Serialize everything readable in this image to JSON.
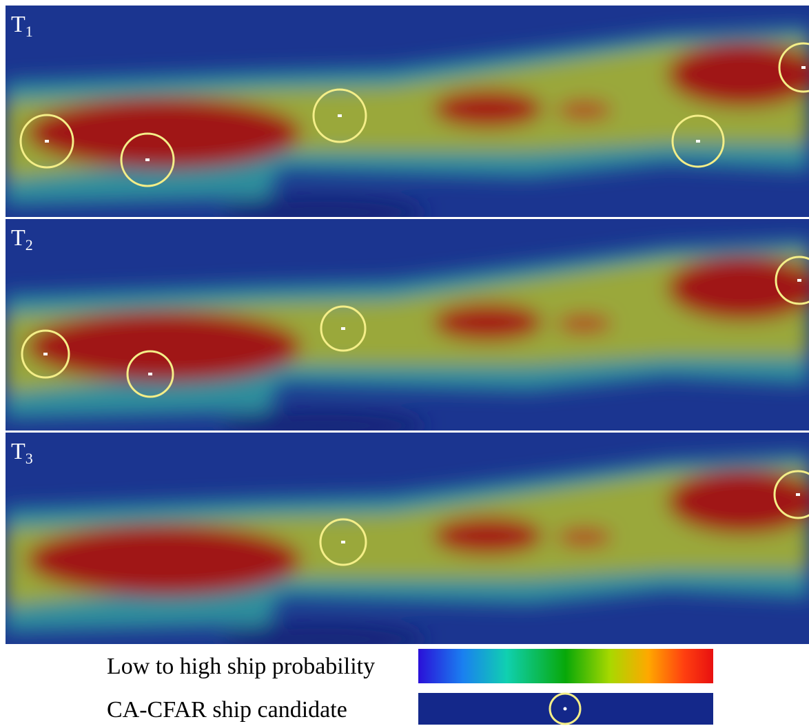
{
  "panels": [
    {
      "label": "T",
      "subscript": "1"
    },
    {
      "label": "T",
      "subscript": "2"
    },
    {
      "label": "T",
      "subscript": "3"
    }
  ],
  "legend": {
    "probability": "Low to high ship probability",
    "candidate": "CA-CFAR ship candidate"
  }
}
